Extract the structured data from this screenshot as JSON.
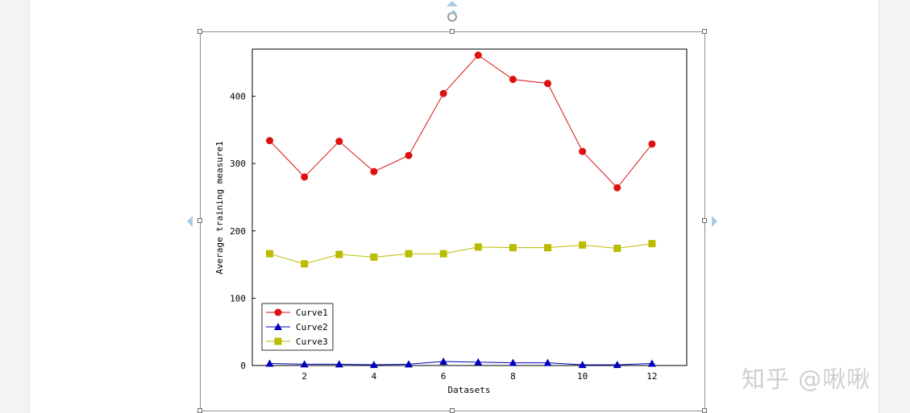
{
  "chart_data": {
    "type": "line",
    "xlabel": "Datasets",
    "ylabel": "Average training measure1",
    "x": [
      1,
      2,
      3,
      4,
      5,
      6,
      7,
      8,
      9,
      10,
      11,
      12
    ],
    "xticks": [
      2,
      4,
      6,
      8,
      10,
      12
    ],
    "yticks": [
      0,
      100,
      200,
      300,
      400
    ],
    "xlim": [
      0.5,
      13
    ],
    "ylim": [
      0,
      470
    ],
    "grid": false,
    "legend_position": "bottom-left",
    "series": [
      {
        "name": "Curve1",
        "color": "#dd1111",
        "marker": "circle",
        "values": [
          334,
          280,
          333,
          288,
          312,
          404,
          461,
          425,
          419,
          318,
          264,
          329
        ]
      },
      {
        "name": "Curve2",
        "color": "#0000bb",
        "marker": "triangle",
        "values": [
          3,
          2,
          2,
          1,
          2,
          6,
          5,
          4,
          4,
          1,
          1,
          3
        ]
      },
      {
        "name": "Curve3",
        "color": "#bbbb00",
        "marker": "square",
        "values": [
          166,
          151,
          165,
          161,
          166,
          166,
          176,
          175,
          175,
          179,
          174,
          181
        ]
      }
    ]
  },
  "watermark": "知乎 @啾啾",
  "colors": {
    "selection_accent": "#a9cbe3",
    "frame_border": "#8f8f8f"
  },
  "icons": {
    "rotate": "rotate-icon"
  }
}
